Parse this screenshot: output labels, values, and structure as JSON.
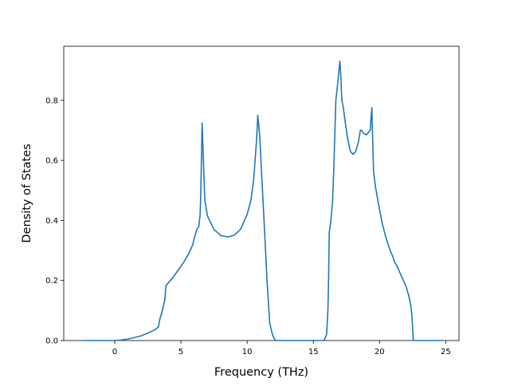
{
  "chart_data": {
    "type": "line",
    "title": "",
    "xlabel": "Frequency (THz)",
    "ylabel": "Density of States",
    "xlim": [
      -3.85,
      26.0
    ],
    "ylim": [
      0.0,
      0.98
    ],
    "grid": false,
    "legend": "none",
    "x_ticks": [
      0,
      5,
      10,
      15,
      20,
      25
    ],
    "x_tick_labels": [
      "0",
      "5",
      "10",
      "15",
      "20",
      "25"
    ],
    "y_ticks": [
      0.0,
      0.2,
      0.4,
      0.6,
      0.8
    ],
    "y_tick_labels": [
      "0.0",
      "0.2",
      "0.4",
      "0.6",
      "0.8"
    ],
    "series": [
      {
        "color": "#1f77b4",
        "x": [
          -2.3,
          -1.0,
          0.0,
          0.5,
          1.0,
          1.5,
          2.0,
          2.5,
          3.0,
          3.3,
          3.4,
          3.6,
          3.8,
          3.85,
          4.0,
          4.2,
          4.4,
          4.8,
          5.2,
          5.6,
          5.9,
          6.0,
          6.2,
          6.35,
          6.45,
          6.5,
          6.6,
          6.8,
          7.0,
          7.5,
          8.0,
          8.5,
          9.0,
          9.5,
          10.0,
          10.3,
          10.5,
          10.7,
          10.75,
          10.8,
          10.85,
          10.95,
          11.1,
          11.3,
          11.5,
          11.7,
          11.85,
          12.0,
          12.15,
          12.5,
          14.0,
          15.0,
          15.8,
          16.0,
          16.1,
          16.15,
          16.2,
          16.3,
          16.45,
          16.55,
          16.7,
          16.85,
          17.0,
          17.08,
          17.15,
          17.25,
          17.4,
          17.6,
          17.8,
          18.0,
          18.2,
          18.4,
          18.55,
          18.65,
          18.8,
          19.0,
          19.2,
          19.3,
          19.35,
          19.42,
          19.5,
          19.55,
          19.7,
          19.9,
          20.2,
          20.5,
          20.8,
          21.0,
          21.15,
          21.3,
          21.6,
          22.0,
          22.2,
          22.35,
          22.45,
          22.55,
          23.0,
          24.0,
          24.7
        ],
        "y": [
          0.0,
          0.0,
          0.0,
          0.002,
          0.005,
          0.01,
          0.016,
          0.025,
          0.035,
          0.045,
          0.07,
          0.1,
          0.14,
          0.18,
          0.19,
          0.2,
          0.21,
          0.235,
          0.26,
          0.29,
          0.32,
          0.34,
          0.37,
          0.38,
          0.42,
          0.49,
          0.725,
          0.47,
          0.415,
          0.37,
          0.35,
          0.345,
          0.35,
          0.37,
          0.42,
          0.47,
          0.54,
          0.66,
          0.7,
          0.75,
          0.73,
          0.68,
          0.55,
          0.38,
          0.2,
          0.06,
          0.03,
          0.01,
          0.0,
          0.0,
          0.0,
          0.0,
          0.0,
          0.02,
          0.1,
          0.2,
          0.36,
          0.39,
          0.46,
          0.58,
          0.8,
          0.86,
          0.93,
          0.88,
          0.8,
          0.78,
          0.73,
          0.67,
          0.63,
          0.62,
          0.63,
          0.66,
          0.7,
          0.7,
          0.69,
          0.685,
          0.695,
          0.7,
          0.74,
          0.775,
          0.64,
          0.56,
          0.51,
          0.46,
          0.39,
          0.34,
          0.3,
          0.28,
          0.26,
          0.25,
          0.22,
          0.18,
          0.15,
          0.12,
          0.08,
          0.0,
          0.0,
          0.0,
          0.0
        ]
      }
    ]
  }
}
